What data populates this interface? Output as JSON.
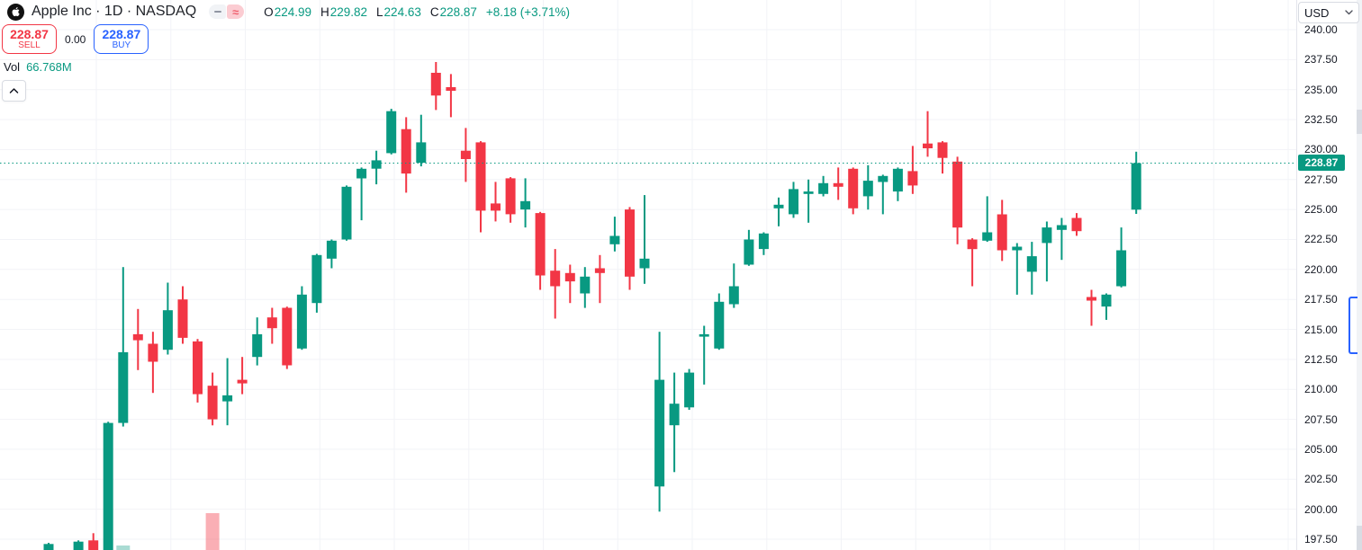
{
  "header": {
    "symbol_title": "Apple Inc · 1D · NASDAQ",
    "ohlc": {
      "open_label": "O",
      "open": "224.99",
      "high_label": "H",
      "high": "229.82",
      "low_label": "L",
      "low": "224.63",
      "close_label": "C",
      "close": "228.87",
      "change": "+8.18 (+3.71%)"
    },
    "sell": {
      "price": "228.87",
      "label": "SELL"
    },
    "spread": "0.00",
    "buy": {
      "price": "228.87",
      "label": "BUY"
    },
    "volume": {
      "label": "Vol",
      "value": "66.768M"
    }
  },
  "icons": {
    "approx": "≈"
  },
  "price_scale": {
    "currency": "USD",
    "current": "228.87",
    "ticks": [
      "240.00",
      "237.50",
      "235.00",
      "232.50",
      "230.00",
      "227.50",
      "225.00",
      "222.50",
      "220.00",
      "217.50",
      "215.00",
      "212.50",
      "210.00",
      "207.50",
      "205.00",
      "202.50",
      "200.00",
      "197.50"
    ]
  },
  "chart_data": {
    "type": "candlestick",
    "title": "Apple Inc · 1D · NASDAQ",
    "currency": "USD",
    "current_price": 228.87,
    "ylim": [
      196.6,
      240.0
    ],
    "y_ticks": [
      240.0,
      237.5,
      235.0,
      232.5,
      230.0,
      227.5,
      225.0,
      222.5,
      220.0,
      217.5,
      215.0,
      212.5,
      210.0,
      207.5,
      205.0,
      202.5,
      200.0,
      197.5
    ],
    "grid": true,
    "up_color": "#089981",
    "down_color": "#f23645",
    "up_volume_color": "rgba(8,153,129,0.35)",
    "down_volume_color": "rgba(242,54,69,0.40)",
    "current_price_line_color": "#089981",
    "candles_ohlc": [
      [
        196.6,
        197.2,
        196.4,
        197.1
      ],
      [
        196.4,
        196.5,
        195.5,
        195.9
      ],
      [
        196.4,
        197.4,
        196.2,
        197.3
      ],
      [
        197.4,
        198.0,
        196.2,
        196.5
      ],
      [
        196.0,
        207.3,
        195.9,
        207.2
      ],
      [
        207.2,
        220.2,
        206.9,
        213.1
      ],
      [
        214.6,
        216.7,
        211.6,
        214.1
      ],
      [
        213.8,
        214.8,
        209.7,
        212.3
      ],
      [
        213.3,
        218.9,
        212.9,
        216.6
      ],
      [
        217.5,
        218.6,
        213.8,
        214.3
      ],
      [
        214.0,
        214.2,
        208.9,
        209.6
      ],
      [
        210.3,
        211.4,
        207.0,
        207.5
      ],
      [
        209.0,
        212.6,
        207.0,
        209.5
      ],
      [
        210.8,
        212.7,
        209.6,
        210.5
      ],
      [
        212.7,
        216.0,
        212.0,
        214.6
      ],
      [
        216.0,
        216.8,
        213.8,
        215.1
      ],
      [
        216.8,
        216.9,
        211.7,
        212.0
      ],
      [
        213.4,
        218.6,
        213.3,
        217.9
      ],
      [
        217.2,
        221.3,
        216.4,
        221.2
      ],
      [
        220.9,
        222.5,
        220.1,
        222.4
      ],
      [
        222.5,
        227.0,
        222.4,
        226.9
      ],
      [
        227.6,
        228.5,
        224.1,
        228.4
      ],
      [
        228.4,
        229.9,
        227.1,
        229.1
      ],
      [
        229.7,
        233.4,
        229.6,
        233.2
      ],
      [
        231.7,
        232.7,
        226.4,
        228.0
      ],
      [
        228.9,
        232.9,
        228.6,
        230.6
      ],
      [
        236.4,
        237.3,
        233.3,
        234.5
      ],
      [
        235.2,
        236.3,
        232.7,
        234.9
      ],
      [
        229.9,
        231.8,
        227.3,
        229.2
      ],
      [
        230.6,
        230.7,
        223.1,
        224.9
      ],
      [
        225.5,
        227.3,
        224.0,
        224.9
      ],
      [
        227.6,
        227.7,
        223.9,
        224.6
      ],
      [
        225.0,
        227.6,
        223.5,
        225.7
      ],
      [
        224.7,
        224.8,
        218.3,
        219.5
      ],
      [
        219.9,
        221.7,
        215.9,
        218.6
      ],
      [
        219.7,
        220.4,
        217.2,
        219.0
      ],
      [
        218.0,
        220.2,
        216.8,
        219.4
      ],
      [
        220.1,
        221.2,
        217.2,
        219.7
      ],
      [
        222.1,
        224.4,
        221.5,
        222.8
      ],
      [
        225.0,
        225.2,
        218.3,
        219.4
      ],
      [
        220.1,
        226.2,
        218.8,
        220.9
      ],
      [
        201.9,
        214.8,
        199.8,
        210.8
      ],
      [
        207.0,
        211.4,
        203.1,
        208.8
      ],
      [
        208.5,
        211.7,
        208.3,
        211.4
      ],
      [
        214.4,
        215.3,
        210.4,
        214.6
      ],
      [
        213.4,
        218.0,
        213.3,
        217.3
      ],
      [
        217.1,
        220.5,
        216.8,
        218.6
      ],
      [
        220.4,
        223.3,
        220.3,
        222.5
      ],
      [
        221.7,
        223.1,
        221.2,
        223.0
      ],
      [
        225.1,
        226.0,
        223.6,
        225.4
      ],
      [
        224.6,
        227.3,
        224.3,
        226.7
      ],
      [
        226.3,
        227.5,
        223.9,
        226.5
      ],
      [
        226.3,
        227.8,
        226.1,
        227.2
      ],
      [
        227.2,
        228.5,
        225.8,
        226.9
      ],
      [
        228.4,
        228.5,
        224.6,
        225.1
      ],
      [
        226.1,
        228.7,
        225.0,
        227.4
      ],
      [
        227.3,
        227.9,
        224.6,
        227.8
      ],
      [
        226.5,
        228.5,
        225.7,
        228.4
      ],
      [
        228.2,
        230.3,
        226.3,
        227.0
      ],
      [
        230.5,
        233.2,
        229.4,
        230.1
      ],
      [
        230.6,
        230.7,
        228.0,
        229.3
      ],
      [
        229.0,
        229.4,
        222.1,
        223.5
      ],
      [
        222.5,
        222.6,
        218.6,
        221.7
      ],
      [
        222.4,
        226.1,
        222.3,
        223.1
      ],
      [
        224.6,
        225.8,
        220.7,
        221.6
      ],
      [
        221.6,
        222.2,
        217.9,
        221.9
      ],
      [
        219.8,
        222.3,
        217.9,
        221.1
      ],
      [
        222.2,
        224.0,
        219.0,
        223.5
      ],
      [
        223.3,
        224.3,
        220.8,
        223.7
      ],
      [
        224.3,
        224.7,
        222.8,
        223.2
      ],
      [
        217.7,
        218.3,
        215.3,
        217.4
      ],
      [
        216.9,
        218.0,
        215.8,
        217.9
      ],
      [
        218.6,
        223.5,
        218.5,
        221.6
      ],
      [
        224.99,
        229.82,
        224.63,
        228.87
      ]
    ],
    "volume_bars": [
      {
        "index": 5,
        "height": 5,
        "direction": "up"
      },
      {
        "index": 11,
        "height": 41,
        "direction": "down"
      }
    ]
  }
}
